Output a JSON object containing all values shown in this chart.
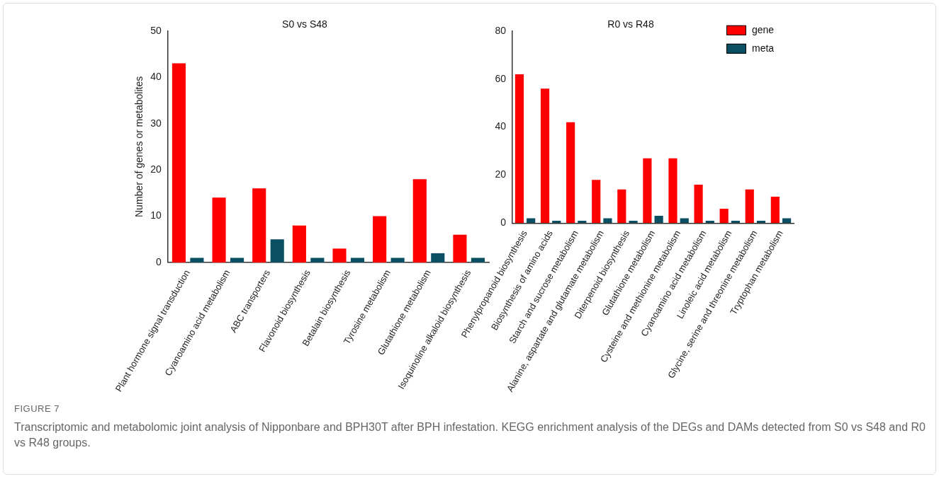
{
  "chart_data": [
    {
      "type": "bar",
      "title": "S0 vs S48",
      "ylabel": "Number of genes or metabolites",
      "categories": [
        "Plant hormone signal transduction",
        "Cyanoamino acid metabolism",
        "ABC transporters",
        "Flavonoid biosynthesis",
        "Betalain biosynthesis",
        "Tyrosine metabolism",
        "Glutathione metabolism",
        "Isoquinoline alkaloid biosynthesis"
      ],
      "series": [
        {
          "color": "#ff0000",
          "values": [
            43,
            14,
            16,
            8,
            3,
            10,
            18,
            6
          ]
        },
        {
          "color": "#0b4f62",
          "values": [
            1,
            1,
            5,
            1,
            1,
            1,
            2,
            1
          ]
        }
      ],
      "ylim": [
        0,
        50
      ],
      "yticks": [
        0,
        10,
        20,
        30,
        40,
        50
      ],
      "grid": false,
      "legend": false,
      "annotations": [
        "FIGURE 7",
        "Transcriptomic and metabolomic joint analysis of Nipponbare and BPH30T after BPH infestation. KEGG enrichment analysis of the DEGs and DAMs detected from S0 vs S48 and R0 vs R48 groups."
      ]
    },
    {
      "type": "bar",
      "title": "R0 vs R48",
      "categories": [
        "Phenylpropanoid biosynthesis",
        "Biosynthesis of amino acids",
        "Starch and sucrose metabolism",
        "Alanine, aspartate and glutamate metabolism",
        "Diterpenoid biosynthesis",
        "Glutathione metabolism",
        "Cysteine and methionine metabolism",
        "Cyanoamino acid metabolism",
        "Linoleic acid metabolism",
        "Glycine, serine and threonine metabolism",
        "Tryptophan metabolism"
      ],
      "series": [
        {
          "name": "gene",
          "color": "#ff0000",
          "values": [
            62,
            56,
            42,
            18,
            14,
            27,
            27,
            16,
            6,
            14,
            11
          ]
        },
        {
          "name": "meta",
          "color": "#0b4f62",
          "values": [
            2,
            1,
            1,
            2,
            1,
            3,
            2,
            1,
            1,
            1,
            2
          ]
        }
      ],
      "ylim": [
        0,
        80
      ],
      "yticks": [
        0,
        20,
        40,
        60,
        80
      ],
      "grid": false,
      "legend": "top right"
    }
  ]
}
